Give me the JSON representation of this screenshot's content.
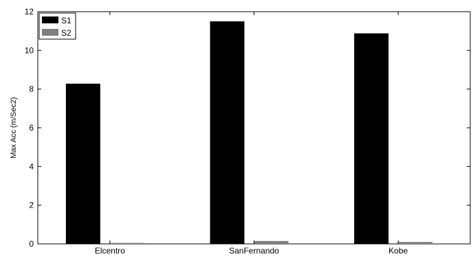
{
  "chart_data": {
    "type": "bar",
    "title": "",
    "xlabel": "",
    "ylabel": "Max Acc (m/Sec2)",
    "ylim": [
      0,
      12
    ],
    "yticks": [
      0,
      2,
      4,
      6,
      8,
      10,
      12
    ],
    "categories": [
      "Elcentro",
      "SanFernando",
      "Kobe"
    ],
    "series": [
      {
        "name": "S1",
        "values": [
          8.28,
          11.5,
          10.88
        ],
        "color": "#000000"
      },
      {
        "name": "S2",
        "values": [
          0.05,
          0.15,
          0.1
        ],
        "color": "#808080"
      }
    ],
    "legend_position": "top-left",
    "grid": false
  }
}
